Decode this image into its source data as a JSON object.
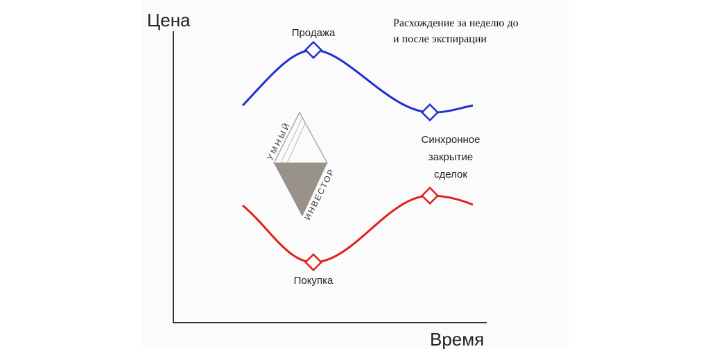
{
  "axes": {
    "y_label": "Цена",
    "x_label": "Время"
  },
  "note": [
    "Расхождение за неделю до",
    "и после экспирации"
  ],
  "labels": {
    "sell": "Продажа",
    "buy": "Покупка",
    "sync": [
      "Синхронное",
      "закрытие",
      "сделок"
    ]
  },
  "watermark": [
    "УМНЫЙ",
    "ИНВЕСТОР"
  ]
}
